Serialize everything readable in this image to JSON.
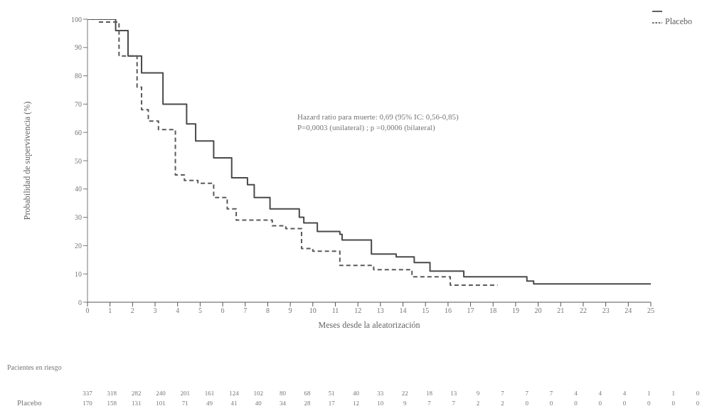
{
  "chart_data": {
    "type": "step",
    "xlabel": "Meses desde la aleatorización",
    "ylabel": "Probabilidad de supervivencia (%)",
    "xlim": [
      0,
      25
    ],
    "xticks": [
      0,
      1,
      2,
      3,
      4,
      5,
      6,
      7,
      8,
      9,
      10,
      11,
      12,
      13,
      14,
      15,
      16,
      17,
      18,
      19,
      20,
      21,
      22,
      23,
      24,
      25
    ],
    "ylim": [
      0,
      100
    ],
    "yticks": [
      0,
      10,
      20,
      30,
      40,
      50,
      60,
      70,
      80,
      90,
      100
    ],
    "grid": false,
    "legend": "top right",
    "marker": "none",
    "series": [
      {
        "color": "#4a4a4a",
        "line_style": "solid",
        "x": [
          0,
          0.7,
          1.25,
          1.8,
          2.4,
          3.35,
          4.4,
          4.8,
          5.6,
          6.4,
          7.1,
          7.4,
          8.1,
          9.4,
          9.6,
          10.2,
          11.2,
          11.3,
          12.1,
          12.6,
          13.7,
          14.5,
          15.2,
          16.7,
          19.5,
          19.8,
          25
        ],
        "values": [
          100,
          100,
          96,
          87,
          81,
          70,
          63,
          57,
          51,
          44,
          41.5,
          37,
          33,
          30,
          28,
          25,
          24,
          22,
          22,
          17,
          16,
          14,
          11,
          9,
          7.5,
          6.5,
          6.5
        ]
      },
      {
        "name": "Placebo",
        "color": "#5a5a5a",
        "line_style": "dashed",
        "x": [
          0,
          0.5,
          1.4,
          2.2,
          2.4,
          2.7,
          3.15,
          3.9,
          4.3,
          4.9,
          5.6,
          6.2,
          6.6,
          7.7,
          8.2,
          8.8,
          9.5,
          10,
          11.2,
          12.7,
          14.4,
          16.1,
          18.2
        ],
        "values": [
          100,
          99,
          87,
          76,
          68,
          64,
          61,
          45,
          43,
          42,
          37,
          33,
          29,
          29,
          27,
          26,
          19,
          18,
          13,
          11.5,
          9,
          6,
          6
        ]
      }
    ],
    "annotations": [
      "Hazard ratio para muerte: 0,69 (95% IC: 0,56-0,85)",
      "P=0,0003 (unilateral) ; p =0,0006 (bilateral)",
      "Pacientes en riesgo",
      "Placebo",
      "337 318 282 240 201 161 124 102 80 68 51 40 33 22 18 13 9 7 7 7 4 4 4 1 1 0",
      "170 158 131 101 71 49 41 40 34 28 17 12 10 9 7 7 2 2 0 0 0 0 0 0 0 0"
    ]
  }
}
